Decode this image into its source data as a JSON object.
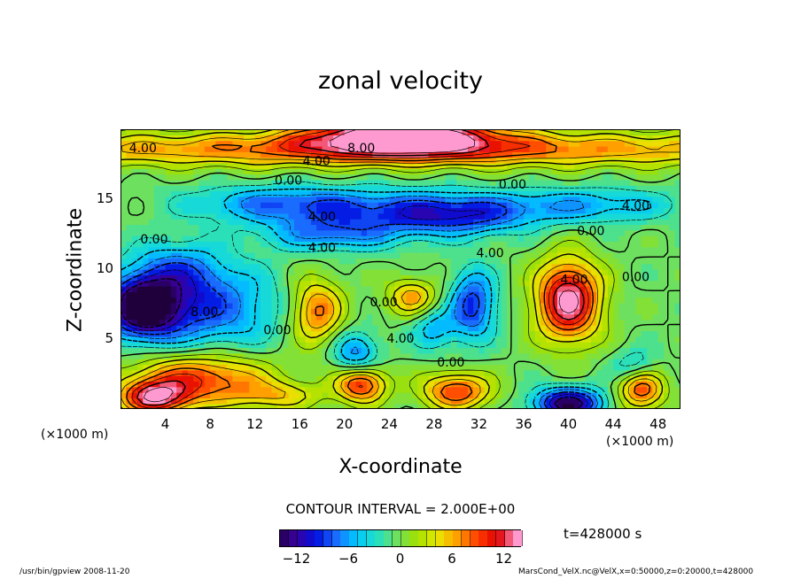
{
  "chart_data": {
    "type": "heatmap",
    "title": "zonal velocity",
    "xlabel": "X-coordinate",
    "ylabel": "Z-coordinate",
    "x_unit_label": "(×1000 m)",
    "x_ticks": [
      4,
      8,
      12,
      16,
      20,
      24,
      28,
      32,
      36,
      40,
      44,
      48
    ],
    "y_ticks": [
      5,
      10,
      15
    ],
    "xlim": [
      0,
      50
    ],
    "ylim": [
      0,
      20
    ],
    "contour_interval_text": "CONTOUR INTERVAL = 2.000E+00",
    "colorbar": {
      "range": [
        -14,
        14
      ],
      "ticks": [
        -12,
        -6,
        0,
        6,
        12
      ],
      "tick_labels": [
        "−12",
        "−6",
        "0",
        "6",
        "12"
      ]
    },
    "contour_labels": [
      {
        "text": "4.00",
        "x": 2,
        "z": 18.6
      },
      {
        "text": "8.00",
        "x": 21.5,
        "z": 18.6
      },
      {
        "text": "4.00",
        "x": 17.5,
        "z": 17.7
      },
      {
        "text": "0.00",
        "x": 15,
        "z": 16.3
      },
      {
        "text": "0.00",
        "x": 35,
        "z": 16.0
      },
      {
        "text": "4.00",
        "x": 46,
        "z": 14.5
      },
      {
        "text": "4.00",
        "x": 18,
        "z": 13.7
      },
      {
        "text": "0.00",
        "x": 3,
        "z": 12.1
      },
      {
        "text": "0.00",
        "x": 42,
        "z": 12.7
      },
      {
        "text": "4.00",
        "x": 18,
        "z": 11.5
      },
      {
        "text": "4.00",
        "x": 33,
        "z": 11.1
      },
      {
        "text": "4.00",
        "x": 40.5,
        "z": 9.2
      },
      {
        "text": "0.00",
        "x": 46,
        "z": 9.4
      },
      {
        "text": "0.00",
        "x": 23.5,
        "z": 7.6
      },
      {
        "text": "8.00",
        "x": 7.5,
        "z": 6.9
      },
      {
        "text": "0.00",
        "x": 14,
        "z": 5.6
      },
      {
        "text": "4.00",
        "x": 25,
        "z": 5.0
      },
      {
        "text": "0.00",
        "x": 29.5,
        "z": 3.3
      }
    ],
    "field_blobs": [
      {
        "x": 25,
        "z": 19.6,
        "v": 16,
        "sx": 8,
        "sz": 1.3
      },
      {
        "x": 25,
        "z": 18.6,
        "v": 9,
        "sx": 40,
        "sz": 1.2
      },
      {
        "x": 2,
        "z": 7.3,
        "v": -14,
        "sx": 3,
        "sz": 2
      },
      {
        "x": 7,
        "z": 7.3,
        "v": -8,
        "sx": 7,
        "sz": 3
      },
      {
        "x": 14,
        "z": 14.8,
        "v": -5,
        "sx": 8,
        "sz": 1.2
      },
      {
        "x": 24,
        "z": 14.2,
        "v": -6,
        "sx": 12,
        "sz": 1.5
      },
      {
        "x": 42,
        "z": 14.6,
        "v": -5,
        "sx": 8,
        "sz": 1.2
      },
      {
        "x": 19,
        "z": 12.5,
        "v": -6,
        "sx": 6,
        "sz": 1.2
      },
      {
        "x": 30,
        "z": 13.8,
        "v": -6,
        "sx": 6,
        "sz": 1.4
      },
      {
        "x": 5,
        "z": 10.0,
        "v": -5,
        "sx": 4,
        "sz": 2
      },
      {
        "x": 31.5,
        "z": 7.5,
        "v": -9,
        "sx": 2,
        "sz": 2.4
      },
      {
        "x": 21,
        "z": 4.0,
        "v": -7,
        "sx": 2,
        "sz": 1.5
      },
      {
        "x": 28,
        "z": 5.8,
        "v": -5,
        "sx": 2,
        "sz": 1.5
      },
      {
        "x": 40,
        "z": 0.4,
        "v": -14,
        "sx": 3,
        "sz": 1.1
      },
      {
        "x": 46,
        "z": 3.0,
        "v": -5,
        "sx": 2,
        "sz": 1.2
      },
      {
        "x": 17.5,
        "z": 7.0,
        "v": 9,
        "sx": 2.3,
        "sz": 2.3
      },
      {
        "x": 26,
        "z": 8.0,
        "v": 7,
        "sx": 2.2,
        "sz": 1.3
      },
      {
        "x": 40,
        "z": 7.8,
        "v": 15,
        "sx": 2.8,
        "sz": 2.8
      },
      {
        "x": 7,
        "z": 2.2,
        "v": 10,
        "sx": 6,
        "sz": 1.8
      },
      {
        "x": 3,
        "z": 0.8,
        "v": 12,
        "sx": 3,
        "sz": 1.2
      },
      {
        "x": 21.5,
        "z": 1.8,
        "v": 11,
        "sx": 2.2,
        "sz": 1.3
      },
      {
        "x": 30,
        "z": 1.3,
        "v": 10,
        "sx": 3,
        "sz": 1.3
      },
      {
        "x": 46.5,
        "z": 1.5,
        "v": 10,
        "sx": 2,
        "sz": 1.5
      },
      {
        "x": 14,
        "z": 1.0,
        "v": 5,
        "sx": 4,
        "sz": 1
      }
    ]
  },
  "time_label": "t=428000 s",
  "footer": {
    "left": "/usr/bin/gpview   2008-11-20",
    "right": "MarsCond_VelX.nc@VelX,x=0:50000,z=0:20000,t=428000"
  },
  "colors": {
    "scale": [
      "#20003a",
      "#3a00a0",
      "#0010e0",
      "#1a6cff",
      "#00c8ff",
      "#20e0c8",
      "#6ee060",
      "#a0e000",
      "#e8e800",
      "#ffa000",
      "#ff4000",
      "#e00000",
      "#ff9ad0"
    ]
  }
}
